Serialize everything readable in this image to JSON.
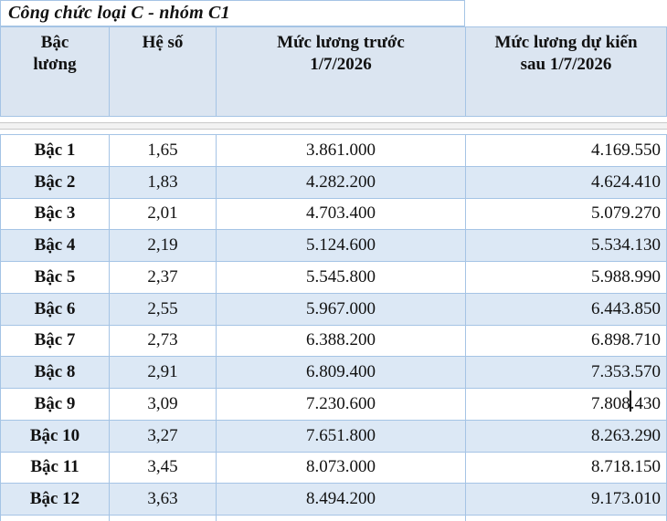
{
  "title": "Công chức loại C - nhóm C1",
  "colors": {
    "table_border": "#a5c4e5",
    "header_bg": "#dbe5f1",
    "alt_row_bg": "#dce8f5",
    "seam_line": "#c9c9c9",
    "text": "#111111"
  },
  "table": {
    "headers": [
      "Bậc\nlương",
      "Hệ số",
      "Mức lương trước\n1/7/2026",
      "Mức lương dự kiến\nsau 1/7/2026"
    ],
    "rows": [
      {
        "level": "Bậc 1",
        "coefficient": "1,65",
        "salary_before": "3.861.000",
        "salary_after": "4.169.550"
      },
      {
        "level": "Bậc 2",
        "coefficient": "1,83",
        "salary_before": "4.282.200",
        "salary_after": "4.624.410"
      },
      {
        "level": "Bậc 3",
        "coefficient": "2,01",
        "salary_before": "4.703.400",
        "salary_after": "5.079.270"
      },
      {
        "level": "Bậc 4",
        "coefficient": "2,19",
        "salary_before": "5.124.600",
        "salary_after": "5.534.130"
      },
      {
        "level": "Bậc 5",
        "coefficient": "2,37",
        "salary_before": "5.545.800",
        "salary_after": "5.988.990"
      },
      {
        "level": "Bậc 6",
        "coefficient": "2,55",
        "salary_before": "5.967.000",
        "salary_after": "6.443.850"
      },
      {
        "level": "Bậc 7",
        "coefficient": "2,73",
        "salary_before": "6.388.200",
        "salary_after": "6.898.710"
      },
      {
        "level": "Bậc 8",
        "coefficient": "2,91",
        "salary_before": "6.809.400",
        "salary_after": "7.353.570"
      },
      {
        "level": "Bậc 9",
        "coefficient": "3,09",
        "salary_before": "7.230.600",
        "salary_after": "7.808.430"
      },
      {
        "level": "Bậc 10",
        "coefficient": "3,27",
        "salary_before": "7.651.800",
        "salary_after": "8.263.290"
      },
      {
        "level": "Bậc 11",
        "coefficient": "3,45",
        "salary_before": "8.073.000",
        "salary_after": "8.718.150"
      },
      {
        "level": "Bậc 12",
        "coefficient": "3,63",
        "salary_before": "8.494.200",
        "salary_after": "9.173.010"
      }
    ]
  }
}
